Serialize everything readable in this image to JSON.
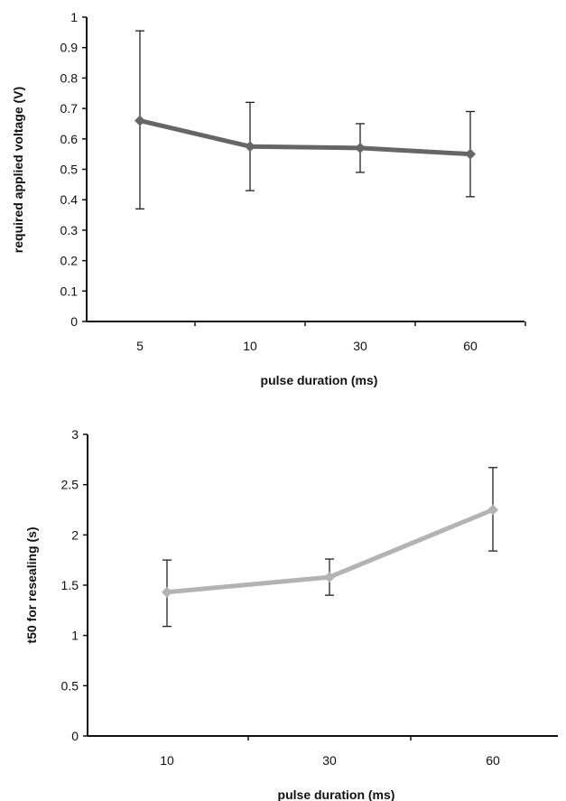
{
  "chart_data": [
    {
      "type": "line",
      "title": "",
      "xlabel": "pulse duration (ms)",
      "ylabel": "required applied voltage (V)",
      "categories": [
        "5",
        "10",
        "30",
        "60"
      ],
      "ylim": [
        0,
        1
      ],
      "yticks": [
        "0",
        "0.1",
        "0.2",
        "0.3",
        "0.4",
        "0.5",
        "0.6",
        "0.7",
        "0.8",
        "0.9",
        "1"
      ],
      "grid": false,
      "legend": "none",
      "series": [
        {
          "values": [
            0.66,
            0.575,
            0.57,
            0.55
          ],
          "error_low": [
            0.37,
            0.43,
            0.49,
            0.41
          ],
          "error_high": [
            0.955,
            0.72,
            0.65,
            0.69
          ],
          "color": "#666666",
          "marker": "diamond"
        }
      ]
    },
    {
      "type": "line",
      "title": "",
      "xlabel": "pulse duration (ms)",
      "ylabel": "t50 for resealing (s)",
      "categories": [
        "10",
        "30",
        "60"
      ],
      "ylim": [
        0,
        3
      ],
      "yticks": [
        "0",
        "0.5",
        "1",
        "1.5",
        "2",
        "2.5",
        "3"
      ],
      "grid": false,
      "legend": "none",
      "series": [
        {
          "values": [
            1.43,
            1.58,
            2.25
          ],
          "error_low": [
            1.09,
            1.4,
            1.84
          ],
          "error_high": [
            1.75,
            1.76,
            2.67
          ],
          "color": "#b3b3b3",
          "marker": "diamond"
        }
      ]
    }
  ]
}
